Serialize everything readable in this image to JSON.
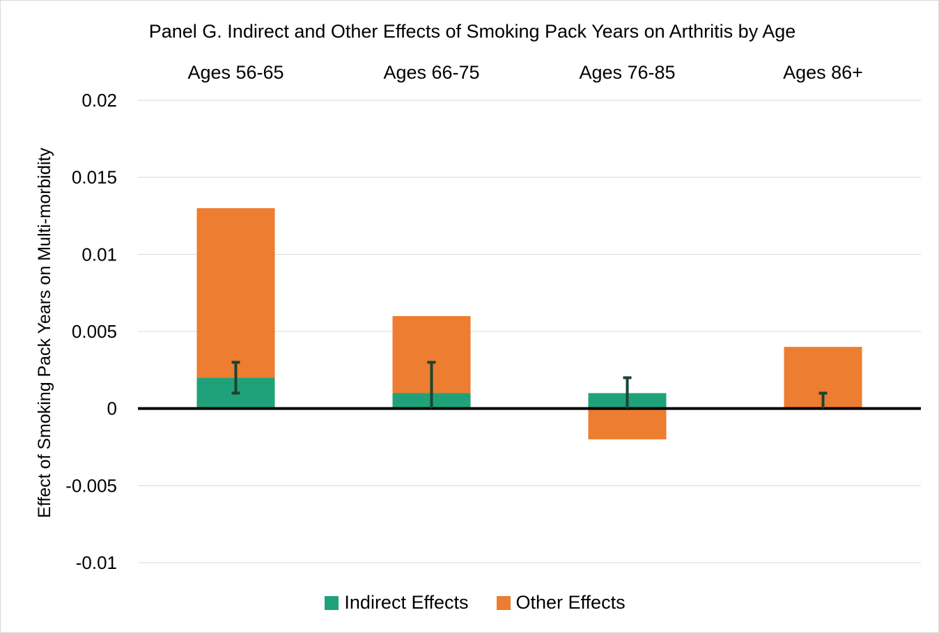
{
  "chart_data": {
    "type": "bar",
    "title": "Panel G. Indirect and Other Effects of Smoking Pack Years on Arthritis by Age",
    "xlabel": "",
    "ylabel": "Effect of Smoking Pack Years on Multi-morbidity",
    "ylim": [
      -0.01,
      0.02
    ],
    "yticks": [
      0.02,
      0.015,
      0.01,
      0.005,
      0,
      -0.005,
      -0.01
    ],
    "ytick_labels": [
      "0.02",
      "0.015",
      "0.01",
      "0.005",
      "0",
      "-0.005",
      "-0.01"
    ],
    "categories": [
      "Ages 56-65",
      "Ages 66-75",
      "Ages 76-85",
      "Ages 86+"
    ],
    "category_axis_position": "top",
    "grid": true,
    "legend_position": "bottom",
    "series": [
      {
        "name": "Indirect Effects",
        "color": "#1fa27a",
        "values": [
          0.002,
          0.001,
          0.001,
          0.0
        ],
        "error_bars": [
          {
            "low": 0.001,
            "high": 0.003
          },
          {
            "low": 0.0,
            "high": 0.003
          },
          {
            "low": 0.0,
            "high": 0.002
          },
          {
            "low": 0.0,
            "high": 0.001
          }
        ]
      },
      {
        "name": "Other Effects",
        "color": "#ed7d31",
        "values": [
          0.011,
          0.005,
          -0.002,
          0.004
        ]
      }
    ],
    "error_bar_color": "#1a4530",
    "zero_line_color": "#000000"
  }
}
